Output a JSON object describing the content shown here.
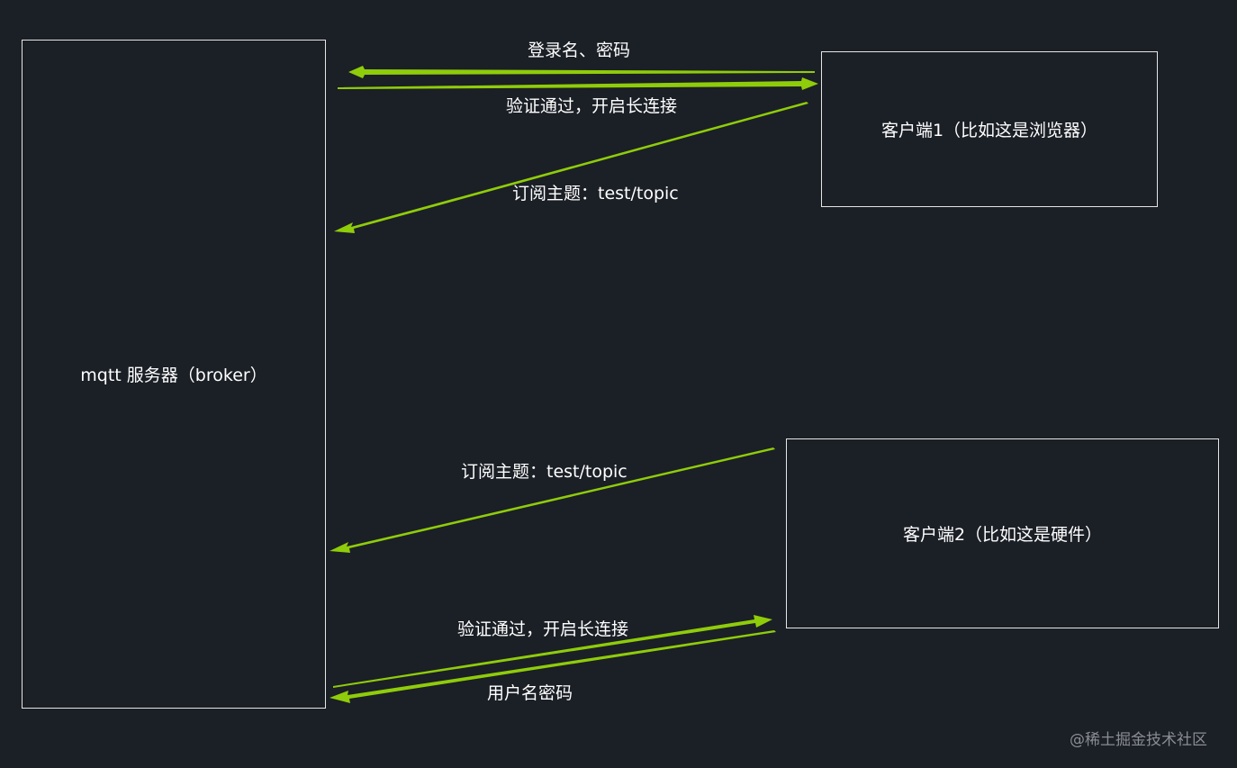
{
  "nodes": {
    "broker": "mqtt 服务器（broker）",
    "client1": "客户端1（比如这是浏览器）",
    "client2": "客户端2（比如这是硬件）"
  },
  "edges": {
    "client1_login": "登录名、密码",
    "client1_auth_ok": "验证通过，开启长连接",
    "client1_subscribe": "订阅主题：test/topic",
    "client2_subscribe": "订阅主题：test/topic",
    "client2_auth_ok": "验证通过，开启长连接",
    "client2_login": "用户名密码"
  },
  "watermark": "@稀土掘金技术社区",
  "colors": {
    "background": "#1b1f26",
    "arrow": "#8fcc0a",
    "box_border": "#e6e6e6",
    "text": "#ffffff"
  }
}
